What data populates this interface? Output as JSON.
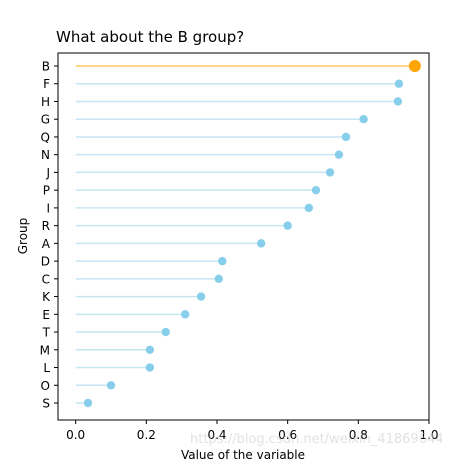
{
  "chart_data": {
    "type": "lollipop",
    "title": "What about the B group?",
    "xlabel": "Value of the variable",
    "ylabel": "Group",
    "xlim": [
      -0.05,
      1.0
    ],
    "xticks": [
      "0.0",
      "0.2",
      "0.4",
      "0.6",
      "0.8",
      "1.0"
    ],
    "xtick_values": [
      0.0,
      0.2,
      0.4,
      0.6,
      0.8,
      1.0
    ],
    "grid": false,
    "highlight": "B",
    "colors": {
      "default_line": "#c6e6f2",
      "default_point": "#87ceeb",
      "highlight_line": "#ffd788",
      "highlight_point": "#ffa500"
    },
    "points": [
      {
        "group": "B",
        "value": 0.96
      },
      {
        "group": "F",
        "value": 0.915
      },
      {
        "group": "H",
        "value": 0.912
      },
      {
        "group": "G",
        "value": 0.815
      },
      {
        "group": "Q",
        "value": 0.765
      },
      {
        "group": "N",
        "value": 0.745
      },
      {
        "group": "J",
        "value": 0.72
      },
      {
        "group": "P",
        "value": 0.68
      },
      {
        "group": "I",
        "value": 0.66
      },
      {
        "group": "R",
        "value": 0.6
      },
      {
        "group": "A",
        "value": 0.525
      },
      {
        "group": "D",
        "value": 0.415
      },
      {
        "group": "C",
        "value": 0.405
      },
      {
        "group": "K",
        "value": 0.355
      },
      {
        "group": "E",
        "value": 0.31
      },
      {
        "group": "T",
        "value": 0.255
      },
      {
        "group": "M",
        "value": 0.21
      },
      {
        "group": "L",
        "value": 0.21
      },
      {
        "group": "O",
        "value": 0.1
      },
      {
        "group": "S",
        "value": 0.035
      }
    ]
  },
  "watermark": "https://blog.csdn.net/weixin_41869644"
}
